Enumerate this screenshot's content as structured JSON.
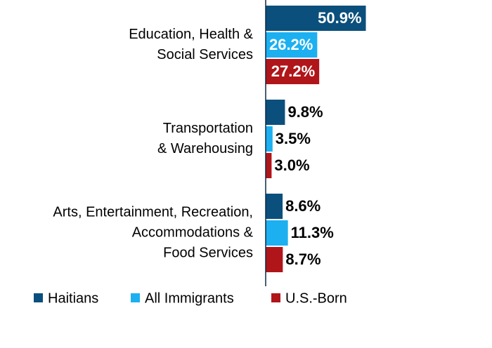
{
  "chart_data": {
    "type": "barh",
    "categories": [
      [
        "Education, Health &",
        "Social Services"
      ],
      [
        "Transportation",
        "& Warehousing"
      ],
      [
        "Arts, Entertainment, Recreation,",
        "Accommodations &",
        "Food Services"
      ]
    ],
    "series": [
      {
        "name": "Haitians",
        "color": "#0b4f7c",
        "values": [
          50.9,
          9.8,
          8.6
        ],
        "value_labels": [
          "50.9%",
          "9.8%",
          "8.6%"
        ]
      },
      {
        "name": "All Immigrants",
        "color": "#1cb0f0",
        "values": [
          26.2,
          3.5,
          11.3
        ],
        "value_labels": [
          "26.2%",
          "3.5%",
          "11.3%"
        ]
      },
      {
        "name": "U.S.-Born",
        "color": "#b01519",
        "values": [
          27.2,
          3.0,
          8.7
        ],
        "value_labels": [
          "27.2%",
          "3.0%",
          "8.7%"
        ]
      }
    ],
    "xlim": [
      0,
      115
    ]
  }
}
